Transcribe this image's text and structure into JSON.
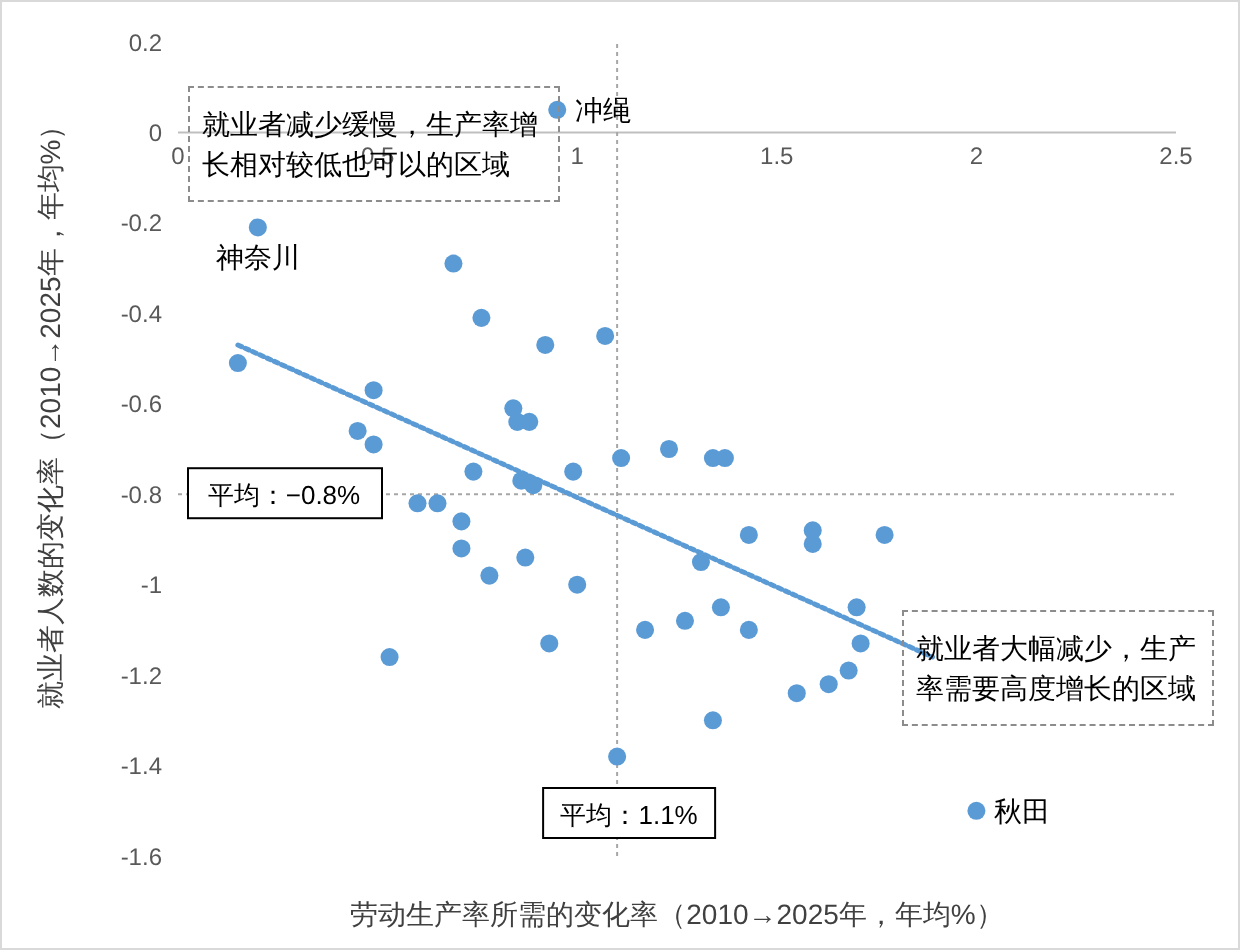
{
  "chart_data": {
    "type": "scatter",
    "xlabel": "劳动生产率所需的变化率（2010→2025年，年均%）",
    "ylabel": "就业者人数的变化率（2010→2025年，年均%）",
    "xlim": [
      0,
      2.5
    ],
    "xticks": [
      0,
      0.5,
      1,
      1.5,
      2,
      2.5
    ],
    "ylim": [
      -1.6,
      0.2
    ],
    "yticks": [
      0.2,
      0,
      -0.2,
      -0.4,
      -0.6,
      -0.8,
      -1,
      -1.2,
      -1.4,
      -1.6
    ],
    "series": [
      {
        "color": "#5b9bd5",
        "marker": "circle",
        "x": [
          0.95,
          0.2,
          0.15,
          0.69,
          0.76,
          0.92,
          1.07,
          0.49,
          0.45,
          0.49,
          0.84,
          0.85,
          0.88,
          0.74,
          0.99,
          1.11,
          1.23,
          1.34,
          1.37,
          0.86,
          0.89,
          0.6,
          0.65,
          0.71,
          0.71,
          0.87,
          0.78,
          1.0,
          0.53,
          0.93,
          1.1,
          1.43,
          1.59,
          1.59,
          1.77,
          1.31,
          1.36,
          1.17,
          1.27,
          1.43,
          1.7,
          1.71,
          1.34,
          1.55,
          1.63,
          1.68,
          2.0
        ],
        "values": [
          0.05,
          -0.21,
          -0.51,
          -0.29,
          -0.41,
          -0.47,
          -0.45,
          -0.57,
          -0.66,
          -0.69,
          -0.61,
          -0.64,
          -0.64,
          -0.75,
          -0.75,
          -0.72,
          -0.7,
          -0.72,
          -0.72,
          -0.77,
          -0.78,
          -0.82,
          -0.82,
          -0.86,
          -0.92,
          -0.94,
          -0.98,
          -1.0,
          -1.16,
          -1.13,
          -1.38,
          -0.89,
          -0.88,
          -0.91,
          -0.89,
          -0.95,
          -1.05,
          -1.1,
          -1.08,
          -1.1,
          -1.05,
          -1.13,
          -1.3,
          -1.24,
          -1.22,
          -1.19,
          -1.5
        ]
      },
      {
        "type": "line",
        "color": "#5b9bd5",
        "marker": "none",
        "line_style": "dotted",
        "x": [
          0.15,
          1.89
        ],
        "values": [
          -0.47,
          -1.16
        ]
      }
    ],
    "ref_lines": [
      {
        "axis": "y",
        "value": -0.8,
        "label": "平均：−0.8%",
        "color": "#a6a6a6",
        "line_style": "dotted"
      },
      {
        "axis": "x",
        "value": 1.1,
        "label": "平均：1.1%",
        "color": "#a6a6a6",
        "line_style": "dotted"
      }
    ],
    "annotations": [
      "就业者减少缓慢，生产率增长相对较低也可以的区域",
      "就业者大幅减少，生产率需要高度增长的区域",
      {
        "text": "冲绳",
        "x": 0.95,
        "y": 0.05
      },
      {
        "text": "神奈川",
        "x": 0.2,
        "y": -0.21
      },
      {
        "text": "秋田",
        "x": 2.0,
        "y": -1.5
      }
    ]
  }
}
